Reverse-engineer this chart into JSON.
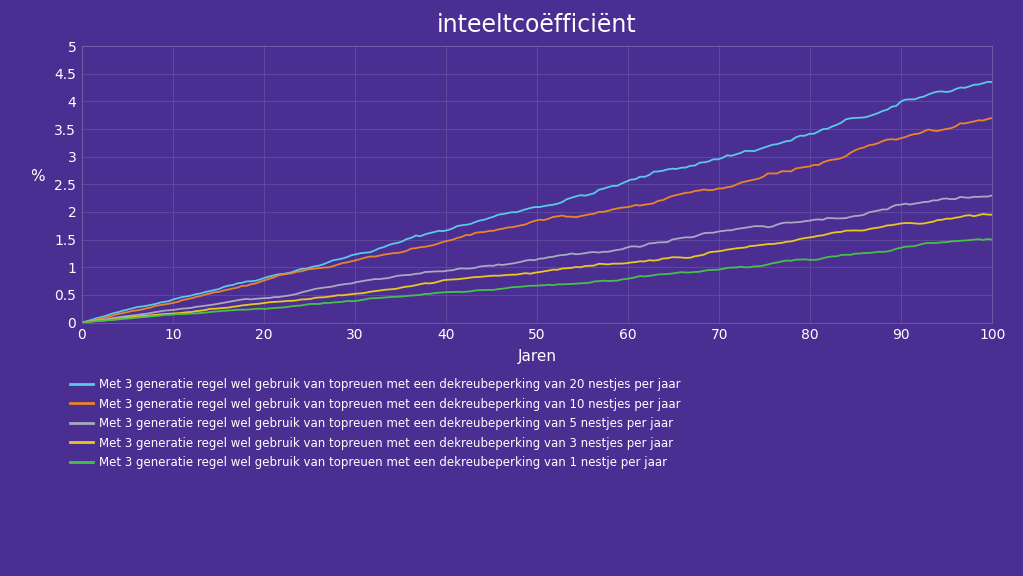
{
  "title": "inteeltcoëfficiënt",
  "xlabel": "Jaren",
  "ylabel": "%",
  "background_color": "#4b2e92",
  "plot_bg_color": "#4b2e92",
  "grid_color": "#7a6aaa",
  "title_color": "#ffffff",
  "label_color": "#ffffff",
  "tick_color": "#ffffff",
  "xlim": [
    0,
    100
  ],
  "ylim": [
    0,
    5
  ],
  "yticks": [
    0,
    0.5,
    1,
    1.5,
    2,
    2.5,
    3,
    3.5,
    4,
    4.5,
    5
  ],
  "xticks": [
    0,
    10,
    20,
    30,
    40,
    50,
    60,
    70,
    80,
    90,
    100
  ],
  "series": [
    {
      "label": "Met 3 generatie regel wel gebruik van topreuen met een dekreubeperking van 20 nestjes per jaar",
      "color": "#5bc8e8",
      "end_value": 4.35,
      "noise_scale": 0.055,
      "seed": 42
    },
    {
      "label": "Met 3 generatie regel wel gebruik van topreuen met een dekreubeperking van 10 nestjes per jaar",
      "color": "#e8852a",
      "end_value": 3.7,
      "noise_scale": 0.045,
      "seed": 43
    },
    {
      "label": "Met 3 generatie regel wel gebruik van topreuen met een dekreubeperking van 5 nestjes per jaar",
      "color": "#a8a8c0",
      "end_value": 2.3,
      "noise_scale": 0.035,
      "seed": 44
    },
    {
      "label": "Met 3 generatie regel wel gebruik van topreuen met een dekreubeperking van 3 nestjes per jaar",
      "color": "#e8c820",
      "end_value": 1.95,
      "noise_scale": 0.03,
      "seed": 45
    },
    {
      "label": "Met 3 generatie regel wel gebruik van topreuen met een dekreubeperking van 1 nestje per jaar",
      "color": "#48c048",
      "end_value": 1.5,
      "noise_scale": 0.025,
      "seed": 46
    }
  ],
  "title_fontsize": 17,
  "axis_label_fontsize": 11,
  "tick_fontsize": 10,
  "legend_fontsize": 8.5,
  "linewidth": 1.3,
  "n_points": 200
}
